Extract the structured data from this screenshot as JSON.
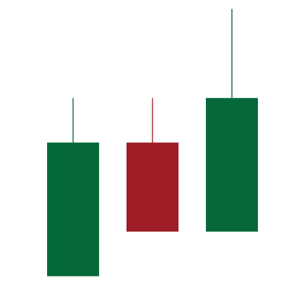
{
  "chart_data": {
    "type": "candlestick",
    "title": "",
    "xlabel": "",
    "ylabel": "",
    "grid": false,
    "legend": "none",
    "ylim": [
      0,
      10
    ],
    "candles": [
      {
        "open": 0.7,
        "close": 5.2,
        "high": 6.7,
        "low": 0.7,
        "direction": "up"
      },
      {
        "open": 5.2,
        "close": 2.2,
        "high": 6.7,
        "low": 2.2,
        "direction": "down"
      },
      {
        "open": 2.2,
        "close": 6.7,
        "high": 9.7,
        "low": 2.2,
        "direction": "up"
      }
    ],
    "colors": {
      "up": "#056839",
      "down": "#9e1d26",
      "background": "#ffffff"
    }
  }
}
